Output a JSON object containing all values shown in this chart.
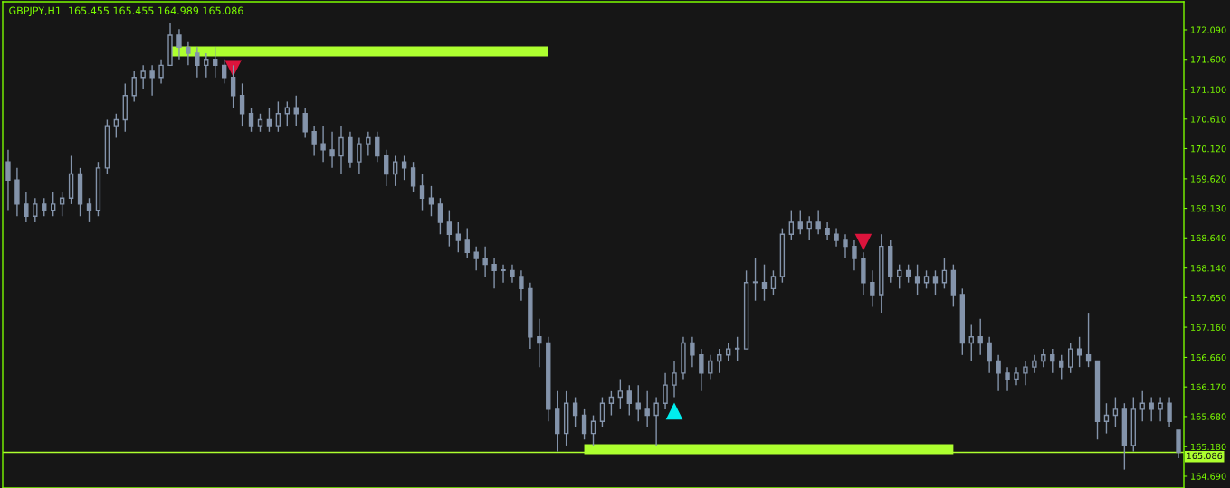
{
  "chart_data": {
    "type": "candlestick",
    "title": "GBPJPY,H1  165.455 165.455 164.989 165.086",
    "categories": [
      null,
      null,
      null,
      null,
      null,
      null,
      null,
      null,
      null,
      null,
      null,
      null,
      null,
      null,
      null,
      null,
      null,
      null,
      null,
      null,
      null,
      null,
      null,
      null,
      null,
      null,
      null,
      null,
      null,
      null,
      null,
      null,
      null,
      null,
      null,
      null,
      null,
      null,
      null,
      null,
      null,
      null,
      null,
      null,
      null,
      null,
      null,
      null,
      null,
      null,
      null,
      null,
      null,
      null,
      null,
      null,
      null,
      null,
      null,
      null,
      null,
      null,
      null,
      null,
      null,
      null,
      null,
      null,
      null,
      null,
      null,
      null,
      null,
      null,
      null,
      null,
      null,
      null,
      null,
      null,
      null,
      null,
      null,
      null,
      null,
      null,
      null,
      null,
      null,
      null,
      null,
      null,
      null,
      null,
      null,
      null,
      null,
      null,
      null,
      null,
      null,
      null,
      null,
      null,
      null,
      null,
      null,
      null,
      null,
      null,
      null,
      null,
      null,
      null,
      null,
      null,
      null,
      null,
      null,
      null,
      null,
      null,
      null,
      null,
      null,
      null,
      null,
      null,
      null,
      null,
      null
    ],
    "color": "#8494ab",
    "ohlc": [
      [
        169.9,
        170.1,
        169.1,
        169.6
      ],
      [
        169.6,
        169.8,
        169.0,
        169.2
      ],
      [
        169.2,
        169.4,
        168.9,
        169.0
      ],
      [
        169.0,
        169.3,
        168.9,
        169.2
      ],
      [
        169.2,
        169.3,
        169.0,
        169.1
      ],
      [
        169.1,
        169.4,
        169.0,
        169.2
      ],
      [
        169.2,
        169.4,
        169.0,
        169.3
      ],
      [
        169.3,
        170.0,
        169.2,
        169.7
      ],
      [
        169.7,
        169.8,
        169.0,
        169.2
      ],
      [
        169.2,
        169.3,
        168.9,
        169.1
      ],
      [
        169.1,
        169.9,
        169.0,
        169.8
      ],
      [
        169.8,
        170.6,
        169.7,
        170.5
      ],
      [
        170.5,
        170.7,
        170.3,
        170.6
      ],
      [
        170.6,
        171.2,
        170.4,
        171.0
      ],
      [
        171.0,
        171.4,
        170.9,
        171.3
      ],
      [
        171.3,
        171.5,
        171.1,
        171.4
      ],
      [
        171.4,
        171.5,
        171.0,
        171.3
      ],
      [
        171.3,
        171.6,
        171.2,
        171.5
      ],
      [
        171.5,
        172.2,
        171.5,
        172.0
      ],
      [
        172.0,
        172.1,
        171.6,
        171.8
      ],
      [
        171.8,
        171.9,
        171.5,
        171.7
      ],
      [
        171.7,
        171.8,
        171.3,
        171.5
      ],
      [
        171.5,
        171.7,
        171.3,
        171.6
      ],
      [
        171.6,
        171.8,
        171.3,
        171.5
      ],
      [
        171.5,
        171.6,
        171.2,
        171.3
      ],
      [
        171.3,
        171.5,
        170.8,
        171.0
      ],
      [
        171.0,
        171.2,
        170.5,
        170.7
      ],
      [
        170.7,
        170.8,
        170.4,
        170.5
      ],
      [
        170.5,
        170.7,
        170.4,
        170.6
      ],
      [
        170.6,
        170.8,
        170.4,
        170.5
      ],
      [
        170.5,
        170.9,
        170.4,
        170.7
      ],
      [
        170.7,
        170.9,
        170.5,
        170.8
      ],
      [
        170.8,
        171.0,
        170.5,
        170.7
      ],
      [
        170.7,
        170.8,
        170.3,
        170.4
      ],
      [
        170.4,
        170.5,
        170.0,
        170.2
      ],
      [
        170.2,
        170.5,
        169.9,
        170.1
      ],
      [
        170.1,
        170.4,
        169.8,
        170.0
      ],
      [
        170.0,
        170.5,
        169.7,
        170.3
      ],
      [
        170.3,
        170.4,
        169.8,
        169.9
      ],
      [
        169.9,
        170.3,
        169.7,
        170.2
      ],
      [
        170.2,
        170.4,
        170.0,
        170.3
      ],
      [
        170.3,
        170.4,
        169.9,
        170.0
      ],
      [
        170.0,
        170.1,
        169.5,
        169.7
      ],
      [
        169.7,
        170.0,
        169.5,
        169.9
      ],
      [
        169.9,
        170.0,
        169.6,
        169.8
      ],
      [
        169.8,
        169.9,
        169.4,
        169.5
      ],
      [
        169.5,
        169.7,
        169.1,
        169.3
      ],
      [
        169.3,
        169.5,
        169.0,
        169.2
      ],
      [
        169.2,
        169.3,
        168.7,
        168.9
      ],
      [
        168.9,
        169.1,
        168.5,
        168.7
      ],
      [
        168.7,
        168.9,
        168.4,
        168.6
      ],
      [
        168.6,
        168.8,
        168.3,
        168.4
      ],
      [
        168.4,
        168.5,
        168.1,
        168.3
      ],
      [
        168.3,
        168.5,
        168.0,
        168.2
      ],
      [
        168.2,
        168.3,
        167.8,
        168.1
      ],
      [
        168.1,
        168.2,
        167.9,
        168.1
      ],
      [
        168.1,
        168.2,
        167.9,
        168.0
      ],
      [
        168.0,
        168.1,
        167.6,
        167.8
      ],
      [
        167.8,
        167.9,
        166.8,
        167.0
      ],
      [
        167.0,
        167.3,
        166.5,
        166.9
      ],
      [
        166.9,
        167.0,
        165.6,
        165.8
      ],
      [
        165.8,
        166.1,
        165.1,
        165.4
      ],
      [
        165.4,
        166.1,
        165.2,
        165.9
      ],
      [
        165.9,
        166.0,
        165.5,
        165.7
      ],
      [
        165.7,
        165.8,
        165.3,
        165.4
      ],
      [
        165.4,
        165.7,
        165.2,
        165.6
      ],
      [
        165.6,
        166.0,
        165.5,
        165.9
      ],
      [
        165.9,
        166.1,
        165.7,
        166.0
      ],
      [
        166.0,
        166.3,
        165.8,
        166.1
      ],
      [
        166.1,
        166.2,
        165.7,
        165.9
      ],
      [
        165.9,
        166.2,
        165.6,
        165.8
      ],
      [
        165.8,
        166.1,
        165.5,
        165.7
      ],
      [
        165.7,
        166.0,
        165.2,
        165.9
      ],
      [
        165.9,
        166.4,
        165.8,
        166.2
      ],
      [
        166.2,
        166.6,
        166.0,
        166.4
      ],
      [
        166.4,
        167.0,
        166.3,
        166.9
      ],
      [
        166.9,
        167.0,
        166.5,
        166.7
      ],
      [
        166.7,
        166.8,
        166.1,
        166.4
      ],
      [
        166.4,
        166.7,
        166.3,
        166.6
      ],
      [
        166.6,
        166.8,
        166.4,
        166.7
      ],
      [
        166.7,
        166.9,
        166.6,
        166.8
      ],
      [
        166.8,
        167.0,
        166.6,
        166.8
      ],
      [
        166.8,
        168.1,
        166.8,
        167.9
      ],
      [
        167.9,
        168.3,
        167.6,
        167.9
      ],
      [
        167.9,
        168.2,
        167.6,
        167.8
      ],
      [
        167.8,
        168.1,
        167.7,
        168.0
      ],
      [
        168.0,
        168.8,
        167.9,
        168.7
      ],
      [
        168.7,
        169.1,
        168.6,
        168.9
      ],
      [
        168.9,
        169.1,
        168.7,
        168.8
      ],
      [
        168.8,
        169.0,
        168.6,
        168.9
      ],
      [
        168.9,
        169.1,
        168.7,
        168.8
      ],
      [
        168.8,
        168.9,
        168.6,
        168.7
      ],
      [
        168.7,
        168.8,
        168.5,
        168.6
      ],
      [
        168.6,
        168.7,
        168.3,
        168.5
      ],
      [
        168.5,
        168.6,
        168.1,
        168.3
      ],
      [
        168.3,
        168.4,
        167.7,
        167.9
      ],
      [
        167.9,
        168.1,
        167.5,
        167.7
      ],
      [
        167.7,
        168.7,
        167.4,
        168.5
      ],
      [
        168.5,
        168.6,
        167.9,
        168.0
      ],
      [
        168.0,
        168.2,
        167.8,
        168.1
      ],
      [
        168.1,
        168.2,
        167.9,
        168.0
      ],
      [
        168.0,
        168.2,
        167.7,
        167.9
      ],
      [
        167.9,
        168.1,
        167.8,
        168.0
      ],
      [
        168.0,
        168.1,
        167.7,
        167.9
      ],
      [
        167.9,
        168.3,
        167.8,
        168.1
      ],
      [
        168.1,
        168.2,
        167.5,
        167.7
      ],
      [
        167.7,
        167.8,
        166.7,
        166.9
      ],
      [
        166.9,
        167.2,
        166.6,
        167.0
      ],
      [
        167.0,
        167.3,
        166.7,
        166.9
      ],
      [
        166.9,
        167.0,
        166.4,
        166.6
      ],
      [
        166.6,
        166.7,
        166.1,
        166.4
      ],
      [
        166.4,
        166.5,
        166.1,
        166.3
      ],
      [
        166.3,
        166.5,
        166.2,
        166.4
      ],
      [
        166.4,
        166.6,
        166.2,
        166.5
      ],
      [
        166.5,
        166.7,
        166.4,
        166.6
      ],
      [
        166.6,
        166.8,
        166.5,
        166.7
      ],
      [
        166.7,
        166.8,
        166.4,
        166.6
      ],
      [
        166.6,
        166.7,
        166.3,
        166.5
      ],
      [
        166.5,
        166.9,
        166.4,
        166.8
      ],
      [
        166.8,
        167.0,
        166.5,
        166.7
      ],
      [
        166.7,
        167.4,
        166.5,
        166.6
      ],
      [
        166.6,
        166.6,
        165.3,
        165.6
      ],
      [
        165.6,
        165.9,
        165.4,
        165.7
      ],
      [
        165.7,
        166.0,
        165.5,
        165.8
      ],
      [
        165.8,
        165.9,
        164.8,
        165.2
      ],
      [
        165.2,
        166.0,
        165.1,
        165.8
      ],
      [
        165.8,
        166.1,
        165.6,
        165.9
      ],
      [
        165.9,
        166.0,
        165.6,
        165.8
      ],
      [
        165.8,
        166.0,
        165.6,
        165.9
      ],
      [
        165.9,
        166.0,
        165.5,
        165.6
      ],
      [
        165.455,
        165.455,
        164.989,
        165.086
      ]
    ],
    "series": [
      {
        "type": "line",
        "color": "#adff2f",
        "values": [
          null,
          null,
          null,
          null,
          null,
          null,
          null,
          null,
          null,
          null,
          null,
          null,
          null,
          null,
          null,
          null,
          null,
          null,
          171.73,
          171.73,
          171.73,
          171.73,
          171.73,
          171.73,
          171.73,
          171.73,
          171.73,
          171.73,
          171.73,
          171.73,
          171.73,
          171.73,
          171.73,
          171.73,
          171.73,
          171.73,
          171.73,
          171.73,
          171.73,
          171.73,
          171.73,
          171.73,
          171.73,
          171.73,
          171.73,
          171.73,
          171.73,
          171.73,
          171.73,
          171.73,
          171.73,
          171.73,
          171.73,
          171.73,
          171.73,
          171.73,
          171.73,
          171.73,
          171.73,
          171.73,
          171.73,
          null,
          null,
          null,
          null,
          null,
          null,
          null,
          null,
          null,
          null,
          null,
          null,
          null,
          null,
          null,
          null,
          null,
          null,
          null,
          null,
          null,
          null,
          null,
          null,
          null,
          null,
          null,
          null,
          null,
          null,
          null,
          null,
          null,
          null,
          null,
          null,
          null,
          null,
          null,
          null,
          null,
          null,
          null,
          null,
          null,
          null,
          null,
          null,
          null,
          null,
          null,
          null,
          null,
          null,
          null,
          null,
          null,
          null,
          null,
          null,
          null,
          null,
          null,
          null,
          null,
          null,
          null,
          null,
          null,
          null
        ]
      },
      {
        "type": "line",
        "color": "#adff2f",
        "values": [
          null,
          null,
          null,
          null,
          null,
          null,
          null,
          null,
          null,
          null,
          null,
          null,
          null,
          null,
          null,
          null,
          null,
          null,
          null,
          null,
          null,
          null,
          null,
          null,
          null,
          null,
          null,
          null,
          null,
          null,
          null,
          null,
          null,
          null,
          null,
          null,
          null,
          null,
          null,
          null,
          null,
          null,
          null,
          null,
          null,
          null,
          null,
          null,
          null,
          null,
          null,
          null,
          null,
          null,
          null,
          null,
          null,
          null,
          null,
          null,
          null,
          null,
          null,
          null,
          165.14,
          165.14,
          165.14,
          165.14,
          165.14,
          165.14,
          165.14,
          165.14,
          165.14,
          165.14,
          165.14,
          165.14,
          165.14,
          165.14,
          165.14,
          165.14,
          165.14,
          165.14,
          165.14,
          165.14,
          165.14,
          165.14,
          165.14,
          165.14,
          165.14,
          165.14,
          165.14,
          165.14,
          165.14,
          165.14,
          165.14,
          165.14,
          165.14,
          165.14,
          165.14,
          165.14,
          165.14,
          165.14,
          165.14,
          165.14,
          165.14,
          165.14,
          null,
          null,
          null,
          null,
          null,
          null,
          null,
          null,
          null,
          null,
          null,
          null,
          null,
          null,
          null,
          null,
          null,
          null,
          null,
          null,
          null,
          null,
          null,
          null,
          null
        ]
      },
      {
        "type": "scatter",
        "marker": "triangle",
        "color": "#dc143c",
        "values": [
          null,
          null,
          null,
          null,
          null,
          null,
          null,
          null,
          null,
          null,
          null,
          null,
          null,
          null,
          null,
          null,
          null,
          null,
          null,
          null,
          null,
          null,
          null,
          null,
          null,
          171.45,
          null,
          null,
          null,
          null,
          null,
          null,
          null,
          null,
          null,
          null,
          null,
          null,
          null,
          null,
          null,
          null,
          null,
          null,
          null,
          null,
          null,
          null,
          null,
          null,
          null,
          null,
          null,
          null,
          null,
          null,
          null,
          null,
          null,
          null,
          null,
          null,
          null,
          null,
          null,
          null,
          null,
          null,
          null,
          null,
          null,
          null,
          null,
          null,
          null,
          null,
          null,
          null,
          null,
          null,
          null,
          null,
          null,
          null,
          null,
          null,
          null,
          null,
          null,
          null,
          null,
          null,
          null,
          null,
          null,
          168.57,
          null,
          null,
          null,
          null,
          null,
          null,
          null,
          null,
          null,
          null,
          null,
          null,
          null,
          null,
          null,
          null,
          null,
          null,
          null,
          null,
          null,
          null,
          null,
          null,
          null,
          null,
          null,
          null,
          null,
          null,
          null,
          null,
          null,
          null,
          null
        ]
      },
      {
        "type": "scatter",
        "marker": "triangle",
        "color": "#00eeee",
        "values": [
          null,
          null,
          null,
          null,
          null,
          null,
          null,
          null,
          null,
          null,
          null,
          null,
          null,
          null,
          null,
          null,
          null,
          null,
          null,
          null,
          null,
          null,
          null,
          null,
          null,
          null,
          null,
          null,
          null,
          null,
          null,
          null,
          null,
          null,
          null,
          null,
          null,
          null,
          null,
          null,
          null,
          null,
          null,
          null,
          null,
          null,
          null,
          null,
          null,
          null,
          null,
          null,
          null,
          null,
          null,
          null,
          null,
          null,
          null,
          null,
          null,
          null,
          null,
          null,
          null,
          null,
          null,
          null,
          null,
          null,
          null,
          null,
          null,
          null,
          165.77,
          null,
          null,
          null,
          null,
          null,
          null,
          null,
          null,
          null,
          null,
          null,
          null,
          null,
          null,
          null,
          null,
          null,
          null,
          null,
          null,
          null,
          null,
          null,
          null,
          null,
          null,
          null,
          null,
          null,
          null,
          null,
          null,
          null,
          null,
          null,
          null,
          null,
          null,
          null,
          null,
          null,
          null,
          null,
          null,
          null,
          null,
          null,
          null,
          null,
          null,
          null,
          null,
          null,
          null,
          null,
          null
        ]
      }
    ],
    "ylim": [
      164.495,
      172.554
    ],
    "yticks": [
      {
        "value": 164.69,
        "label": "164.690"
      },
      {
        "value": 165.18,
        "label": "165.180"
      },
      {
        "value": 165.68,
        "label": "165.680"
      },
      {
        "value": 166.17,
        "label": "166.170"
      },
      {
        "value": 166.66,
        "label": "166.660"
      },
      {
        "value": 167.16,
        "label": "167.160"
      },
      {
        "value": 167.65,
        "label": "167.650"
      },
      {
        "value": 168.14,
        "label": "168.140"
      },
      {
        "value": 168.64,
        "label": "168.640"
      },
      {
        "value": 169.13,
        "label": "169.130"
      },
      {
        "value": 169.62,
        "label": "169.620"
      },
      {
        "value": 170.12,
        "label": "170.120"
      },
      {
        "value": 170.61,
        "label": "170.610"
      },
      {
        "value": 171.1,
        "label": "171.100"
      },
      {
        "value": 171.6,
        "label": "171.600"
      },
      {
        "value": 172.09,
        "label": "172.090"
      }
    ],
    "ref_lines": [
      {
        "axis": "y",
        "value": 165.086,
        "label": "165.086",
        "color": "#adff2f"
      }
    ],
    "grid": false,
    "legend": false
  }
}
